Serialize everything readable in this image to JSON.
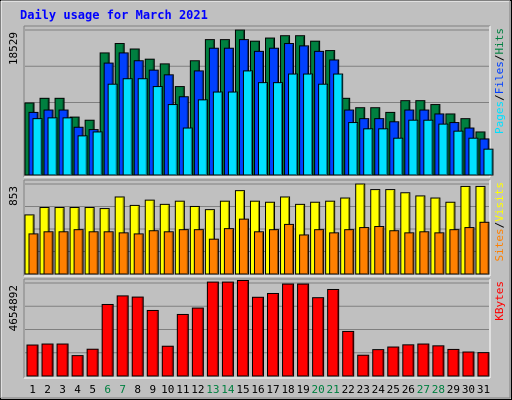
{
  "chart_data": {
    "title": "Daily usage for March 2021",
    "type": "bar",
    "x": [
      "1",
      "2",
      "3",
      "4",
      "5",
      "6",
      "7",
      "8",
      "9",
      "10",
      "11",
      "12",
      "13",
      "14",
      "15",
      "16",
      "17",
      "18",
      "19",
      "20",
      "21",
      "22",
      "23",
      "24",
      "25",
      "26",
      "27",
      "28",
      "29",
      "30",
      "31"
    ],
    "weekend_days": [
      "6",
      "7",
      "13",
      "14",
      "20",
      "21",
      "27",
      "28"
    ],
    "panels": [
      {
        "id": "hits",
        "ymax_label": "18529",
        "ymax": 18529,
        "legend": [
          {
            "label": "Pages",
            "color": "#00e0ff"
          },
          {
            "label": "/",
            "color": "#000000"
          },
          {
            "label": "Files",
            "color": "#0040ff"
          },
          {
            "label": "/",
            "color": "#000000"
          },
          {
            "label": "Hits",
            "color": "#008040"
          }
        ],
        "series": [
          {
            "name": "Hits",
            "color": "#008040",
            "values": [
              9200,
              9800,
              9800,
              7400,
              7000,
              15600,
              16800,
              16100,
              14800,
              14200,
              11300,
              14600,
              17300,
              17300,
              18529,
              17100,
              17500,
              17800,
              17800,
              17100,
              15900,
              9800,
              8600,
              8600,
              8000,
              9500,
              9500,
              9000,
              7800,
              7200,
              5500
            ]
          },
          {
            "name": "Files",
            "color": "#0040ff",
            "values": [
              8000,
              8300,
              8300,
              6100,
              5800,
              14300,
              15600,
              14600,
              13400,
              12800,
              10000,
              13300,
              16200,
              16200,
              17300,
              15800,
              16200,
              16800,
              16500,
              15800,
              14700,
              8300,
              7200,
              7200,
              6800,
              8300,
              8300,
              7800,
              6700,
              6000,
              4600
            ]
          },
          {
            "name": "Pages",
            "color": "#00e0ff",
            "values": [
              7200,
              7300,
              7300,
              5000,
              5500,
              11600,
              12300,
              12300,
              11300,
              9000,
              6000,
              9600,
              10600,
              10600,
              13300,
              11800,
              11800,
              12900,
              12900,
              11600,
              12900,
              6700,
              5900,
              5900,
              4700,
              7000,
              7000,
              6500,
              5600,
              4700,
              3300
            ]
          }
        ]
      },
      {
        "id": "visits",
        "ymax_label": "853",
        "ymax": 853,
        "legend": [
          {
            "label": "Sites",
            "color": "#ff8000"
          },
          {
            "label": "/",
            "color": "#000000"
          },
          {
            "label": "Visits",
            "color": "#ffff00"
          }
        ],
        "series": [
          {
            "name": "Visits",
            "color": "#ffff00",
            "values": [
              560,
              630,
              630,
              630,
              630,
              620,
              730,
              650,
              700,
              660,
              690,
              640,
              610,
              690,
              790,
              690,
              680,
              730,
              660,
              680,
              690,
              720,
              853,
              800,
              800,
              770,
              740,
              720,
              680,
              830,
              830
            ]
          },
          {
            "name": "Sites",
            "color": "#ff8000",
            "values": [
              380,
              400,
              400,
              420,
              400,
              400,
              390,
              380,
              410,
              400,
              420,
              420,
              330,
              430,
              520,
              400,
              420,
              470,
              370,
              420,
              390,
              420,
              440,
              450,
              410,
              390,
              400,
              390,
              420,
              440,
              490
            ]
          }
        ]
      },
      {
        "id": "kbytes",
        "ymax_label": "4654892",
        "ymax": 4654892,
        "legend": [
          {
            "label": "KBytes",
            "color": "#ff0000"
          }
        ],
        "series": [
          {
            "name": "KBytes",
            "color": "#ff0000",
            "values": [
              1550000,
              1600000,
              1600000,
              1020000,
              1340000,
              3580000,
              4010000,
              3950000,
              3280000,
              1490000,
              3080000,
              3400000,
              4700000,
              4700000,
              4780000,
              3940000,
              4130000,
              4600000,
              4600000,
              3920000,
              4330000,
              2230000,
              1040000,
              1320000,
              1450000,
              1560000,
              1600000,
              1510000,
              1330000,
              1200000,
              1170000
            ]
          }
        ]
      }
    ],
    "grid": true
  }
}
